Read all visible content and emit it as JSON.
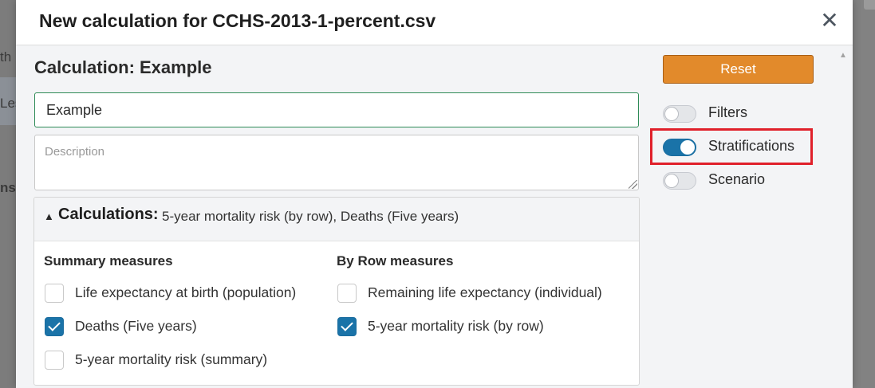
{
  "background": {
    "partial_texts": [
      "th",
      "Les",
      "ns"
    ]
  },
  "modal": {
    "title": "New calculation for CCHS-2013-1-percent.csv",
    "close_symbol": "✕"
  },
  "calculation": {
    "heading": "Calculation: Example",
    "name_value": "Example",
    "description_placeholder": "Description"
  },
  "panel": {
    "label": "Calculations:",
    "value": "5-year mortality risk (by row), Deaths (Five years)",
    "summary_heading": "Summary measures",
    "byrow_heading": "By Row measures",
    "summary_items": [
      {
        "label": "Life expectancy at birth (population)",
        "checked": false
      },
      {
        "label": "Deaths (Five years)",
        "checked": true
      },
      {
        "label": "5-year mortality risk (summary)",
        "checked": false
      }
    ],
    "byrow_items": [
      {
        "label": "Remaining life expectancy (individual)",
        "checked": false
      },
      {
        "label": "5-year mortality risk (by row)",
        "checked": true
      }
    ]
  },
  "sidebar": {
    "reset_label": "Reset",
    "toggles": [
      {
        "label": "Filters",
        "on": false
      },
      {
        "label": "Stratifications",
        "on": true,
        "highlighted": true
      },
      {
        "label": "Scenario",
        "on": false
      }
    ]
  },
  "colors": {
    "accent_blue": "#1a73a8",
    "reset_orange": "#e28a2b",
    "input_focus_green": "#2e8b57",
    "highlight_red": "#e0202a"
  }
}
